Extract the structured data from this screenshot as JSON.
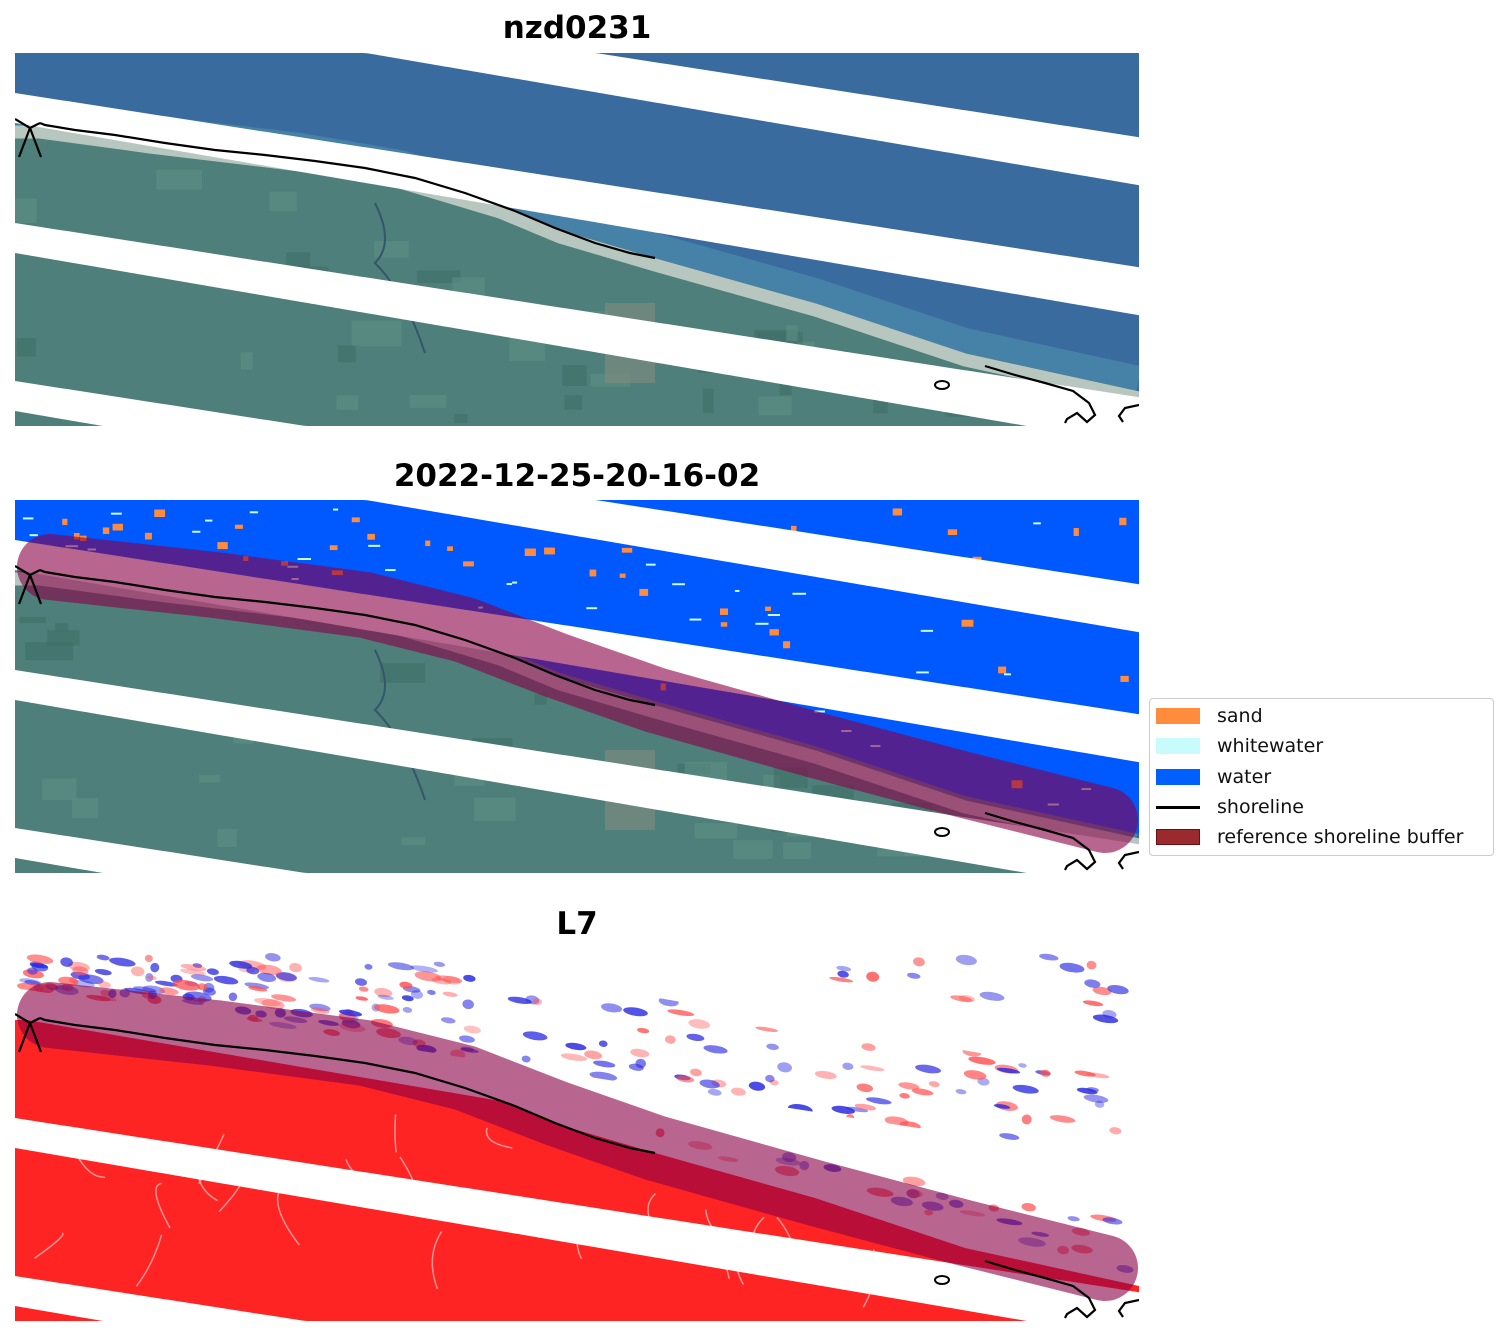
{
  "panels": [
    {
      "title": "nzd0231",
      "kind": "rgb"
    },
    {
      "title": "2022-12-25-20-16-02",
      "kind": "classified"
    },
    {
      "title": "L7",
      "kind": "index"
    }
  ],
  "legend": {
    "items": [
      {
        "label": "sand",
        "type": "patch",
        "color": "#ff8c3c"
      },
      {
        "label": "whitewater",
        "type": "patch",
        "color": "#c8fcfc"
      },
      {
        "label": "water",
        "type": "patch",
        "color": "#0060ff"
      },
      {
        "label": "shoreline",
        "type": "line",
        "color": "#000000"
      },
      {
        "label": "reference shoreline buffer",
        "type": "patch",
        "color": "#9a2a2e"
      }
    ]
  },
  "colors": {
    "ocean": "#3a6b9e",
    "land": "#4f7f7a",
    "water_class": "#0058ff",
    "sand_class": "#ff8c3c",
    "whitewater_class": "#c8fcfc",
    "buffer": "#890046",
    "index_land": "#ff2424"
  }
}
